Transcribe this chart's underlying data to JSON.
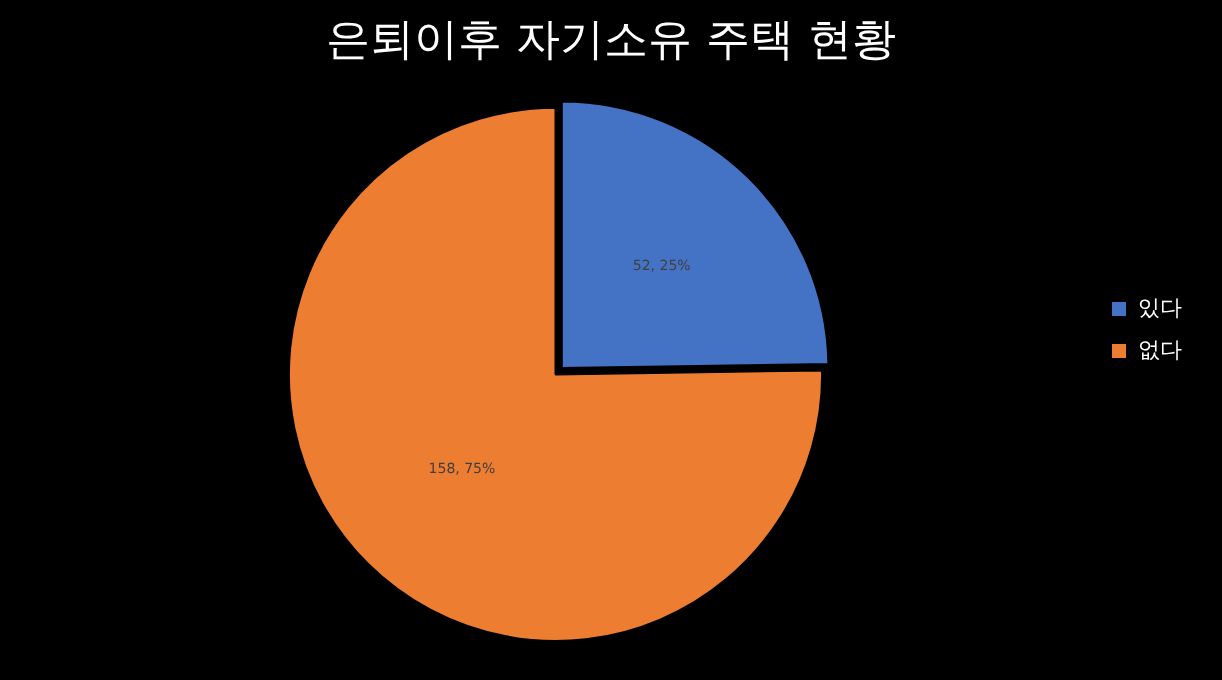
{
  "chart_data": {
    "type": "pie",
    "title": "은퇴이후 자기소유 주택 현황",
    "categories": [
      "있다",
      "없다"
    ],
    "values": [
      52,
      158
    ],
    "colors": [
      "#4472c4",
      "#ed7d31"
    ],
    "value_labels": [
      "52, 25%",
      "158, 75%"
    ],
    "legend": "right"
  }
}
